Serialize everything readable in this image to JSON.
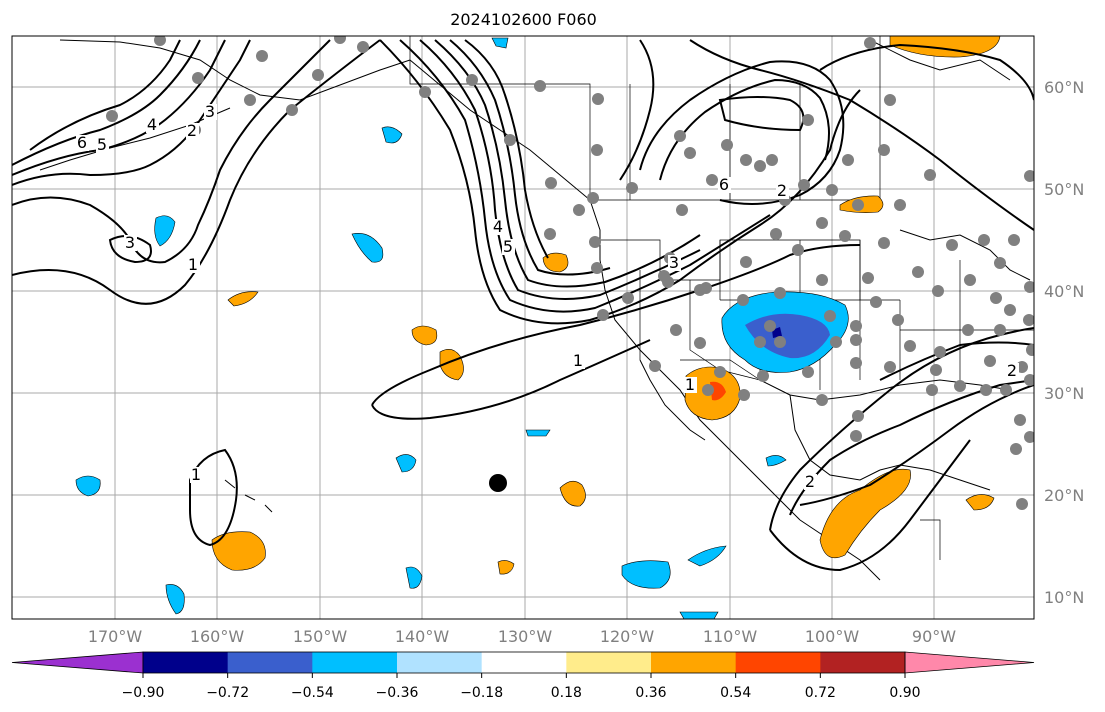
{
  "title": "2024102600 F060",
  "lat_labels": [
    "60°N",
    "50°N",
    "40°N",
    "30°N",
    "20°N",
    "10°N"
  ],
  "lon_labels": [
    "170°W",
    "160°W",
    "150°W",
    "140°W",
    "130°W",
    "120°W",
    "110°W",
    "100°W",
    "90°W"
  ],
  "contour_labels": [
    "6",
    "5",
    "4",
    "3",
    "2",
    "3",
    "1",
    "4",
    "5",
    "1",
    "6",
    "2",
    "3",
    "1",
    "2",
    "1",
    "2"
  ],
  "colorbar": {
    "ticks": [
      "−0.90",
      "−0.72",
      "−0.54",
      "−0.36",
      "−0.18",
      "0.18",
      "0.36",
      "0.54",
      "0.72",
      "0.90"
    ],
    "colors": [
      "#9b30d0",
      "#00008b",
      "#3a5fcd",
      "#00bfff",
      "#b0e2ff",
      "#ffffff",
      "#ffec8b",
      "#ffa500",
      "#ff4500",
      "#b22222",
      "#ff88aa"
    ]
  },
  "colors": {
    "grid": "#a9a9a9",
    "coast": "#000000",
    "station": "#808080",
    "contour": "#000000"
  }
}
